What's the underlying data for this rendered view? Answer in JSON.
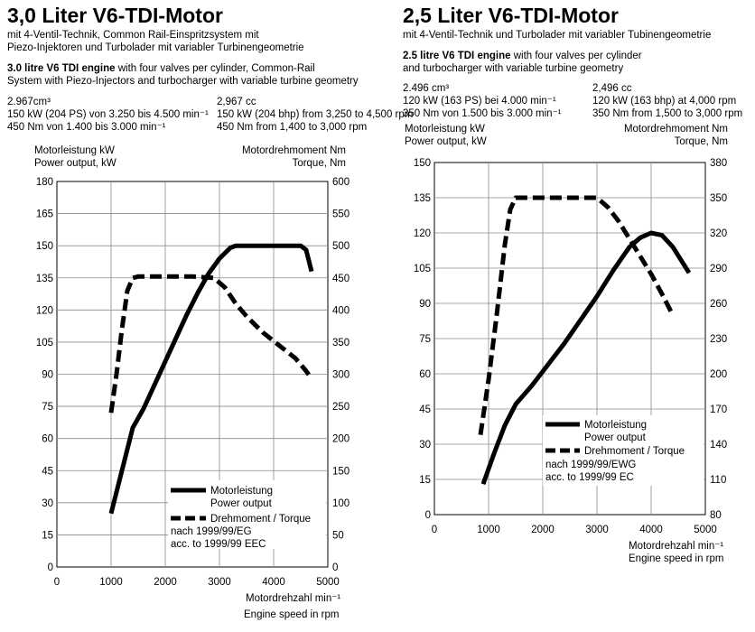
{
  "charts": [
    {
      "title": "3,0 Liter V6-TDI-Motor",
      "desc_de": [
        "mit 4-Ventil-Technik, Common Rail-Einspritzsystem mit",
        "Piezo-Injektoren und Turbolader mit variabler Turbinengeometrie"
      ],
      "desc_en_bold": "3.0 litre V6 TDI engine",
      "desc_en_rest": " with four valves per cylinder, Common-Rail",
      "desc_en_line2": "System with Piezo-Injectors and turbocharger with variable turbine geometry",
      "spec_de": {
        "displacement": "2.967cm³",
        "power": "150 kW (204 PS) von 3.250 bis 4.500 min⁻¹",
        "torque": "450 Nm von 1.400 bis 3.000 min⁻¹"
      },
      "spec_en": {
        "displacement": "2,967 cc",
        "power": "150 kW (204 bhp) from 3,250 to 4,500 rpm",
        "torque": "450 Nm from 1,400 to 3,000 rpm"
      },
      "left_axis_label": [
        "Motorleistung kW",
        "Power output, kW"
      ],
      "right_axis_label": [
        "Motordrehmoment Nm",
        "Torque, Nm"
      ],
      "x_axis_label": [
        "Motordrehzahl min⁻¹",
        "Engine speed in rpm"
      ],
      "legend": {
        "power": [
          "Motorleistung",
          "Power output"
        ],
        "torque": "Drehmoment / Torque",
        "norm": [
          "nach 1999/99/EG",
          "acc. to 1999/99 EEC"
        ]
      }
    },
    {
      "title": "2,5 Liter V6-TDI-Motor",
      "desc_de": [
        "mit 4-Ventil-Technik und Turbolader mit variabler Tubinengeometrie"
      ],
      "desc_en_bold": "2.5 litre V6 TDI engine",
      "desc_en_rest": " with four valves per cylinder",
      "desc_en_line2": "and turbocharger with variable turbine geometry",
      "spec_de": {
        "displacement": "2.496 cm³",
        "power": "120 kW (163 PS) bei 4.000 min⁻¹",
        "torque": "350 Nm von 1.500 bis 3.000 min⁻¹"
      },
      "spec_en": {
        "displacement": "2,496 cc",
        "power": "120 kW (163 bhp) at 4,000 rpm",
        "torque": "350 Nm from 1,500 to 3,000 rpm"
      },
      "left_axis_label": [
        "Motorleistung kW",
        "Power output, kW"
      ],
      "right_axis_label": [
        "Motordrehmoment Nm",
        "Torque, Nm"
      ],
      "x_axis_label": [
        "Motordrehzahl min⁻¹",
        "Engine speed in rpm"
      ],
      "legend": {
        "power": [
          "Motorleistung",
          "Power output"
        ],
        "torque": "Drehmoment / Torque",
        "norm": [
          "nach 1999/99/EWG",
          "acc. to 1999/99 EC"
        ]
      }
    }
  ],
  "chart_data": [
    {
      "type": "line",
      "title": "3,0 Liter V6-TDI-Motor",
      "xlim": [
        0,
        5000
      ],
      "x_ticks": [
        0,
        1000,
        2000,
        3000,
        4000,
        5000
      ],
      "ylim_left": [
        0,
        180
      ],
      "y_ticks_left": [
        0,
        15,
        30,
        45,
        60,
        75,
        90,
        105,
        120,
        135,
        150,
        165,
        180
      ],
      "ylim_right": [
        0,
        600
      ],
      "y_ticks_right": [
        0,
        50,
        100,
        150,
        200,
        250,
        300,
        350,
        400,
        450,
        500,
        550,
        600
      ],
      "grid": true,
      "series": [
        {
          "name": "Motorleistung / Power output",
          "axis": "left",
          "style": "solid",
          "x": [
            1000,
            1200,
            1400,
            1600,
            1800,
            2000,
            2200,
            2400,
            2600,
            2800,
            3000,
            3200,
            3300,
            3400,
            3700,
            4000,
            4300,
            4500,
            4600,
            4700
          ],
          "y": [
            25,
            45,
            65,
            74,
            85,
            96,
            107,
            118,
            128,
            137,
            144,
            149,
            150,
            150,
            150,
            150,
            150,
            150,
            148,
            138
          ]
        },
        {
          "name": "Drehmoment / Torque",
          "axis": "right",
          "style": "dashed",
          "x": [
            1000,
            1100,
            1200,
            1300,
            1400,
            1500,
            2000,
            2500,
            2900,
            3100,
            3300,
            3500,
            3800,
            4100,
            4400,
            4600,
            4700
          ],
          "y": [
            240,
            300,
            370,
            430,
            450,
            452,
            452,
            452,
            450,
            435,
            410,
            390,
            365,
            345,
            325,
            305,
            293
          ]
        }
      ]
    },
    {
      "type": "line",
      "title": "2,5 Liter V6-TDI-Motor",
      "xlim": [
        0,
        5000
      ],
      "x_ticks": [
        0,
        1000,
        2000,
        3000,
        4000,
        5000
      ],
      "ylim_left": [
        0,
        150
      ],
      "y_ticks_left": [
        0,
        15,
        30,
        45,
        60,
        75,
        90,
        105,
        120,
        135,
        150
      ],
      "ylim_right": [
        80,
        380
      ],
      "y_ticks_right": [
        80,
        110,
        140,
        170,
        200,
        230,
        260,
        290,
        320,
        350,
        380
      ],
      "grid": true,
      "series": [
        {
          "name": "Motorleistung / Power output",
          "axis": "left",
          "style": "solid",
          "x": [
            900,
            1100,
            1300,
            1500,
            1800,
            2100,
            2400,
            2700,
            3000,
            3300,
            3600,
            3800,
            4000,
            4200,
            4400,
            4700
          ],
          "y": [
            13,
            26,
            38,
            47,
            55,
            64,
            73,
            83,
            93,
            104,
            114,
            118,
            120,
            119,
            114,
            103
          ]
        },
        {
          "name": "Drehmoment / Torque",
          "axis": "right",
          "style": "dashed",
          "x": [
            850,
            1000,
            1150,
            1300,
            1400,
            1500,
            2000,
            2500,
            3000,
            3200,
            3400,
            3600,
            3800,
            4000,
            4200,
            4400
          ],
          "y": [
            148,
            195,
            250,
            310,
            340,
            350,
            350,
            350,
            350,
            342,
            330,
            315,
            300,
            285,
            268,
            250
          ]
        }
      ]
    }
  ]
}
